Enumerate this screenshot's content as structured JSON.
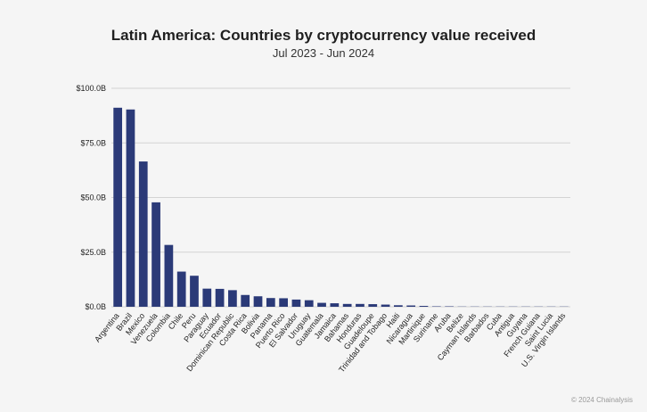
{
  "title": "Latin America: Countries by cryptocurrency value received",
  "subtitle": "Jul 2023 - Jun 2024",
  "credit": "© 2024 Chainalysis",
  "colors": {
    "bar": "#2b3a78",
    "grid": "#d4d4d4",
    "background": "#f5f5f5"
  },
  "chart_data": {
    "type": "bar",
    "title": "Latin America: Countries by cryptocurrency value received",
    "subtitle": "Jul 2023 - Jun 2024",
    "xlabel": "",
    "ylabel": "",
    "ylim": [
      0,
      100
    ],
    "yticks": [
      0,
      25,
      50,
      75,
      100
    ],
    "ytick_labels": [
      "$0.0B",
      "$25.0B",
      "$50.0B",
      "$75.0B",
      "$100.0B"
    ],
    "grid": true,
    "categories": [
      "Argentina",
      "Brazil",
      "Mexico",
      "Venezuela",
      "Colombia",
      "Chile",
      "Peru",
      "Paraguay",
      "Ecuador",
      "Dominican Republic",
      "Costa Rica",
      "Bolivia",
      "Panama",
      "Puerto Rico",
      "El Salvador",
      "Uruguay",
      "Guatemala",
      "Jamaica",
      "Bahamas",
      "Honduras",
      "Guadeloupe",
      "Trinidad and Tobago",
      "Haiti",
      "Nicaragua",
      "Martinique",
      "Suriname",
      "Aruba",
      "Belize",
      "Cayman Islands",
      "Barbados",
      "Cuba",
      "Antigua",
      "Guyana",
      "French Guiana",
      "Saint Lucia",
      "U.S. Virgin Islands"
    ],
    "values": [
      91.1,
      90.3,
      66.5,
      47.8,
      28.3,
      16.1,
      14.2,
      8.3,
      8.2,
      7.6,
      5.4,
      4.8,
      4.0,
      3.9,
      3.3,
      3.0,
      1.8,
      1.6,
      1.3,
      1.3,
      1.2,
      1.0,
      0.7,
      0.6,
      0.4,
      0.2,
      0.2,
      0.1,
      0.1,
      0.1,
      0.1,
      0.1,
      0.1,
      0.1,
      0.1,
      0.1
    ]
  }
}
